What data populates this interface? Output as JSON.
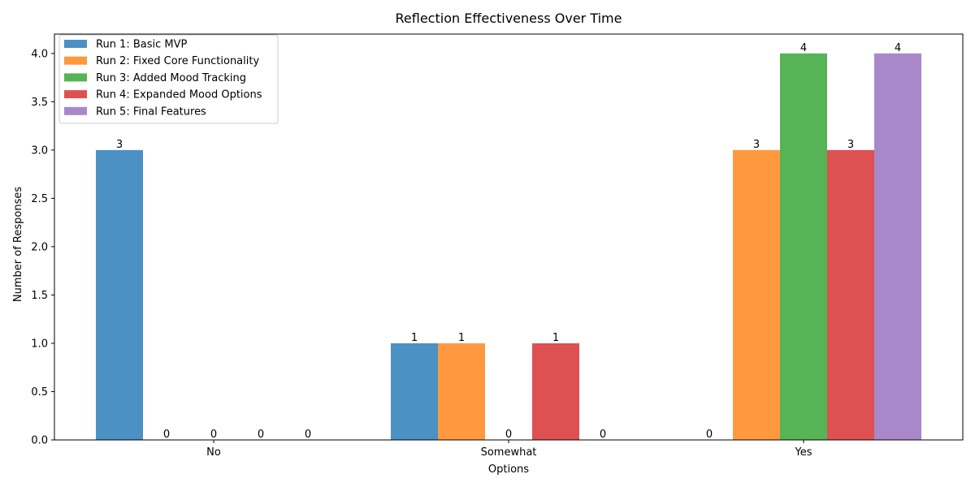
{
  "chart_data": {
    "type": "bar",
    "title": "Reflection Effectiveness Over Time",
    "xlabel": "Options",
    "ylabel": "Number of Responses",
    "categories": [
      "No",
      "Somewhat",
      "Yes"
    ],
    "ylim": [
      0,
      4.2
    ],
    "yticks": [
      "0.0",
      "0.5",
      "1.0",
      "1.5",
      "2.0",
      "2.5",
      "3.0",
      "3.5",
      "4.0"
    ],
    "grid": false,
    "legend_position": "top-left",
    "series": [
      {
        "name": "Run 1: Basic MVP",
        "color": "#4c91c4",
        "values": [
          3,
          1,
          0
        ]
      },
      {
        "name": "Run 2: Fixed Core Functionality",
        "color": "#ff993f",
        "values": [
          0,
          1,
          3
        ]
      },
      {
        "name": "Run 3: Added Mood Tracking",
        "color": "#56b356",
        "values": [
          0,
          0,
          4
        ]
      },
      {
        "name": "Run 4: Expanded Mood Options",
        "color": "#dd5153",
        "values": [
          0,
          1,
          3
        ]
      },
      {
        "name": "Run 5: Final Features",
        "color": "#a988c9",
        "values": [
          0,
          0,
          4
        ]
      }
    ]
  }
}
